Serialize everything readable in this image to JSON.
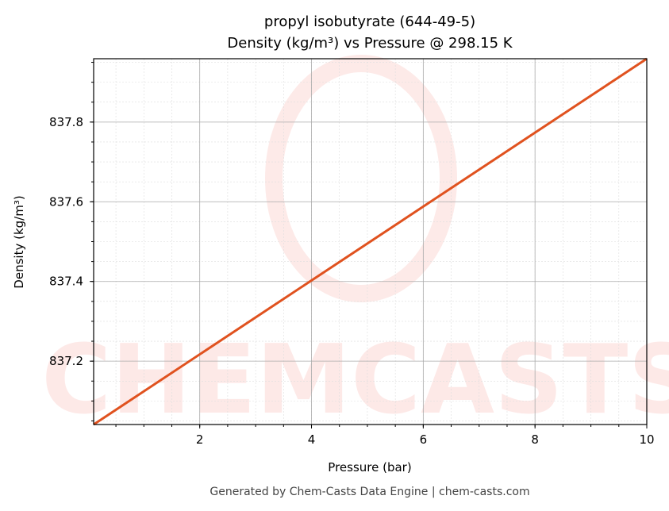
{
  "chart_data": {
    "type": "line",
    "title": "propyl isobutyrate (644-49-5)",
    "subtitle": "Density (kg/m³) vs Pressure @ 298.15 K",
    "xlabel": "Pressure (bar)",
    "ylabel": "Density (kg/m³)",
    "xlim": [
      0.101325,
      10
    ],
    "ylim": [
      837.041,
      837.959
    ],
    "xticks": [
      2,
      4,
      6,
      8,
      10
    ],
    "xtick_labels": [
      "2",
      "4",
      "6",
      "8",
      "10"
    ],
    "yticks": [
      837.2,
      837.4,
      837.6,
      837.8
    ],
    "ytick_labels": [
      "837.2",
      "837.4",
      "837.6",
      "837.8"
    ],
    "grid": true,
    "series": [
      {
        "x": [
          0.101325,
          10
        ],
        "y": [
          837.041,
          837.959
        ],
        "color": "#e0521f"
      }
    ]
  },
  "watermark": "CHEMCASTS",
  "footer": "Generated by Chem-Casts Data Engine | chem-casts.com"
}
